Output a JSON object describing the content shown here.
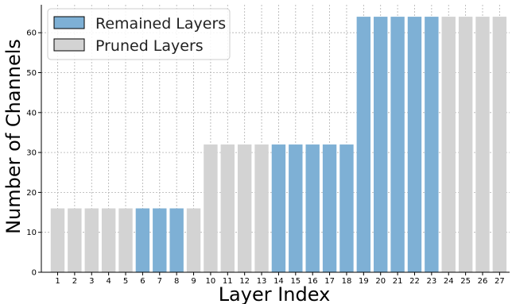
{
  "chart_data": {
    "type": "bar",
    "xlabel": "Layer Index",
    "ylabel": "Number of Channels",
    "ylim": [
      0,
      67
    ],
    "yticks": [
      0,
      10,
      20,
      30,
      40,
      50,
      60
    ],
    "grid": true,
    "legend_position": "top-left",
    "categories": [
      "1",
      "2",
      "3",
      "4",
      "5",
      "6",
      "7",
      "8",
      "9",
      "10",
      "11",
      "12",
      "13",
      "14",
      "15",
      "16",
      "17",
      "18",
      "19",
      "20",
      "21",
      "22",
      "23",
      "24",
      "25",
      "26",
      "27"
    ],
    "values": [
      16,
      16,
      16,
      16,
      16,
      16,
      16,
      16,
      16,
      32,
      32,
      32,
      32,
      32,
      32,
      32,
      32,
      32,
      64,
      64,
      64,
      64,
      64,
      64,
      64,
      64,
      64
    ],
    "status": [
      "pruned",
      "pruned",
      "pruned",
      "pruned",
      "pruned",
      "remained",
      "remained",
      "remained",
      "pruned",
      "pruned",
      "pruned",
      "pruned",
      "pruned",
      "remained",
      "remained",
      "remained",
      "remained",
      "remained",
      "remained",
      "remained",
      "remained",
      "remained",
      "remained",
      "pruned",
      "pruned",
      "pruned",
      "pruned"
    ],
    "legend": [
      {
        "key": "remained",
        "label": "Remained Layers",
        "color": "#7eb0d5"
      },
      {
        "key": "pruned",
        "label": "Pruned Layers",
        "color": "#d3d3d3"
      }
    ]
  }
}
